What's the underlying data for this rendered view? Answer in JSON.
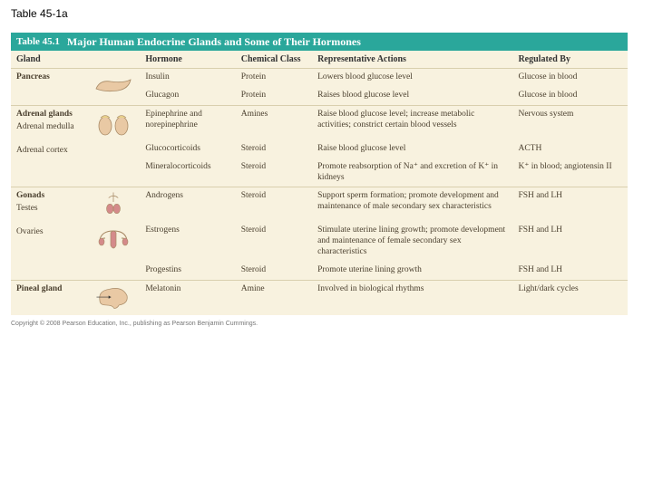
{
  "slide_label": "Table 45-1a",
  "header": {
    "bar_bg": "#2aa79b",
    "bar_text_color": "#ffffff",
    "table_number": "Table 45.1",
    "title": "Major Human Endocrine Glands and Some of Their Hormones"
  },
  "columns_bg": "#f8f2df",
  "columns": {
    "gland": "Gland",
    "hormone": "Hormone",
    "chem": "Chemical Class",
    "actions": "Representative Actions",
    "reg": "Regulated By"
  },
  "colors": {
    "row_border": "#d9cfae",
    "body_text": "#4b402f",
    "icon_fill": "#e9c9a4",
    "icon_stroke": "#a88a66",
    "icon_accent": "#d48a8a"
  },
  "copyright": "Copyright © 2008 Pearson Education, Inc., publishing as Pearson Benjamin Cummings.",
  "rows": [
    {
      "gland": "Pancreas",
      "sub": "",
      "icon": "pancreas",
      "lines": [
        {
          "hormone": "Insulin",
          "chem": "Protein",
          "actions": "Lowers blood glucose level",
          "reg": "Glucose in blood"
        },
        {
          "hormone": "Glucagon",
          "chem": "Protein",
          "actions": "Raises blood glucose level",
          "reg": "Glucose in blood"
        }
      ]
    },
    {
      "gland": "Adrenal glands",
      "sub": "Adrenal medulla",
      "icon": "adrenal",
      "lines": [
        {
          "hormone": "Epinephrine and norepinephrine",
          "chem": "Amines",
          "actions": "Raise blood glucose level; increase metabolic activities; constrict certain blood vessels",
          "reg": "Nervous system"
        }
      ]
    },
    {
      "gland": "",
      "sub": "Adrenal cortex",
      "icon": "",
      "lines": [
        {
          "hormone": "Glucocorticoids",
          "chem": "Steroid",
          "actions": "Raise blood glucose level",
          "reg": "ACTH"
        },
        {
          "hormone": "Mineralocorticoids",
          "chem": "Steroid",
          "actions": "Promote reabsorption of Na⁺ and excretion of K⁺ in kidneys",
          "reg": "K⁺ in blood; angiotensin II"
        }
      ]
    },
    {
      "gland": "Gonads",
      "sub": "Testes",
      "icon": "testes",
      "lines": [
        {
          "hormone": "Androgens",
          "chem": "Steroid",
          "actions": "Support sperm formation; promote development and maintenance of male secondary sex characteristics",
          "reg": "FSH and LH"
        }
      ]
    },
    {
      "gland": "",
      "sub": "Ovaries",
      "icon": "ovaries",
      "lines": [
        {
          "hormone": "Estrogens",
          "chem": "Steroid",
          "actions": "Stimulate uterine lining growth; promote development and maintenance of female secondary sex characteristics",
          "reg": "FSH and LH"
        }
      ]
    },
    {
      "gland": "",
      "sub": "",
      "icon": "",
      "lines": [
        {
          "hormone": "Progestins",
          "chem": "Steroid",
          "actions": "Promote uterine lining growth",
          "reg": "FSH and LH"
        }
      ]
    },
    {
      "gland": "Pineal gland",
      "sub": "",
      "icon": "brain",
      "lines": [
        {
          "hormone": "Melatonin",
          "chem": "Amine",
          "actions": "Involved in biological rhythms",
          "reg": "Light/dark cycles"
        }
      ]
    }
  ]
}
